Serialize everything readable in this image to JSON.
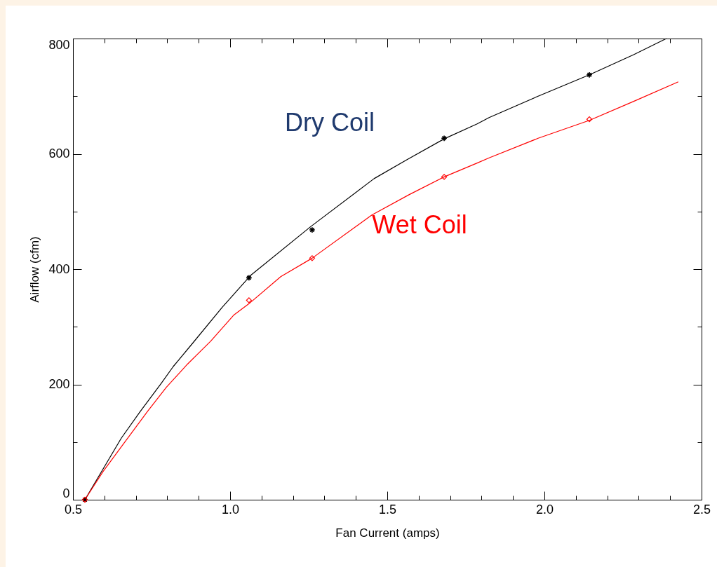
{
  "chart_data": {
    "type": "line",
    "xlabel": "Fan Current (amps)",
    "ylabel": "Airflow (cfm)",
    "xlim": [
      0.5,
      2.5
    ],
    "ylim": [
      0,
      800
    ],
    "xticks": [
      {
        "value": 0.5,
        "label": "0.5"
      },
      {
        "value": 0.6,
        "label": null
      },
      {
        "value": 0.7,
        "label": null
      },
      {
        "value": 0.8,
        "label": null
      },
      {
        "value": 0.9,
        "label": null
      },
      {
        "value": 1.0,
        "label": "1.0"
      },
      {
        "value": 1.1,
        "label": null
      },
      {
        "value": 1.2,
        "label": null
      },
      {
        "value": 1.3,
        "label": null
      },
      {
        "value": 1.4,
        "label": null
      },
      {
        "value": 1.5,
        "label": "1.5"
      },
      {
        "value": 1.6,
        "label": null
      },
      {
        "value": 1.7,
        "label": null
      },
      {
        "value": 1.8,
        "label": null
      },
      {
        "value": 1.9,
        "label": null
      },
      {
        "value": 2.0,
        "label": "2.0"
      },
      {
        "value": 2.1,
        "label": null
      },
      {
        "value": 2.2,
        "label": null
      },
      {
        "value": 2.3,
        "label": null
      },
      {
        "value": 2.4,
        "label": null
      },
      {
        "value": 2.5,
        "label": "2.5"
      }
    ],
    "yticks": [
      0,
      {
        "value": 100,
        "label": null
      },
      200,
      {
        "value": 300,
        "label": null
      },
      400,
      {
        "value": 500,
        "label": null
      },
      600,
      {
        "value": 700,
        "label": null
      },
      800
    ],
    "marker": "none",
    "line_style": "solid",
    "series": [
      {
        "color": "#000000",
        "x": [
          0.538,
          0.654,
          0.714,
          0.781,
          0.819,
          0.877,
          0.975,
          1.065,
          1.257,
          1.458,
          1.563,
          1.681,
          1.786,
          1.824,
          1.98,
          2.143,
          2.284,
          2.388
        ],
        "values": [
          0,
          107,
          153,
          202,
          231,
          269,
          334,
          389,
          474,
          557,
          590,
          626,
          652,
          663,
          700,
          737,
          772,
          800
        ]
      },
      {
        "color": "#ff0000",
        "x": [
          0.538,
          0.596,
          0.654,
          0.737,
          0.797,
          0.864,
          0.938,
          1.011,
          1.06,
          1.161,
          1.261,
          1.451,
          1.569,
          1.681,
          1.786,
          1.824,
          1.98,
          2.143,
          2.284,
          2.426
        ],
        "values": [
          0,
          49,
          92,
          153,
          195,
          235,
          275,
          320,
          340,
          387,
          419,
          494,
          529,
          560,
          584,
          593,
          627,
          658,
          691,
          725
        ]
      },
      {
        "type": "scatter",
        "marker": "cross",
        "color": "#000000",
        "x": [
          0.538,
          1.06,
          1.261,
          1.681,
          2.143
        ],
        "values": [
          0,
          385,
          468,
          627,
          737
        ]
      },
      {
        "type": "scatter",
        "marker": "diamond",
        "color": "#ff0000",
        "x": [
          0.538,
          1.06,
          1.261,
          1.681,
          2.143
        ],
        "values": [
          0,
          346,
          419,
          560,
          660
        ]
      }
    ],
    "annotations": [
      "Dry Coil",
      "Wet Coil"
    ]
  }
}
